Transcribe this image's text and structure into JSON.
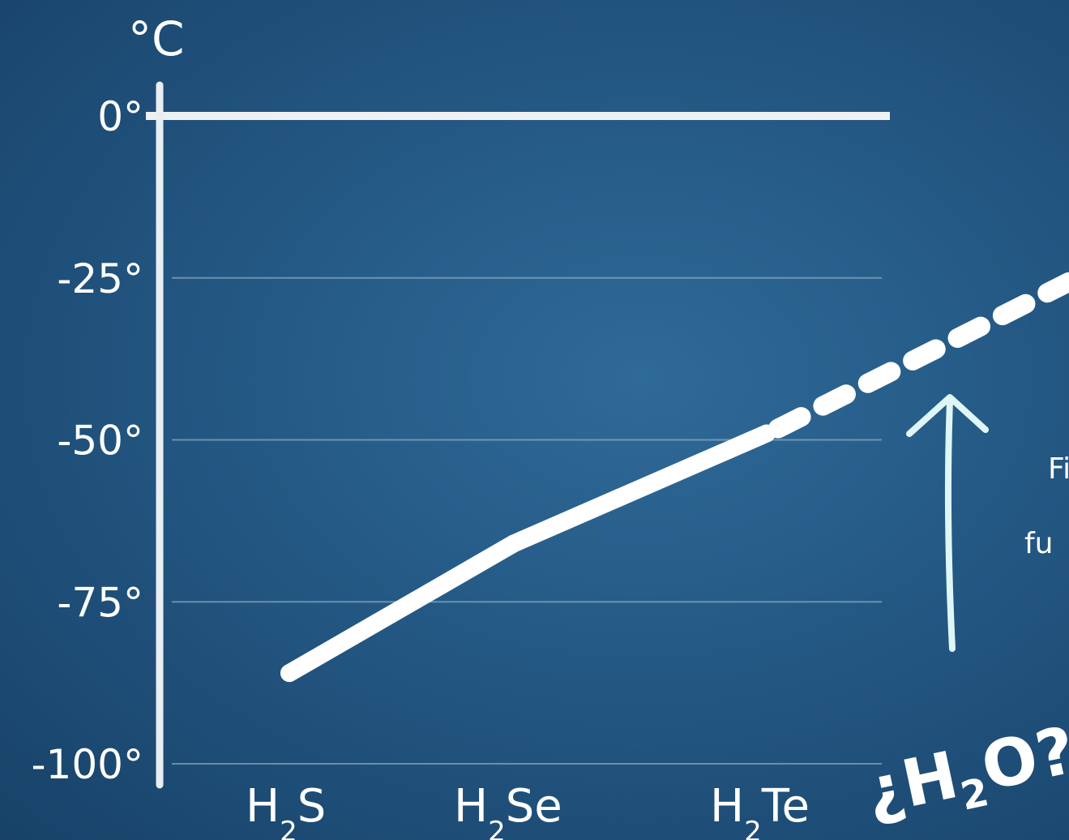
{
  "chart_data": {
    "type": "line",
    "unit_label": "°C",
    "y_ticks": [
      "0°",
      "-25°",
      "-50°",
      "-75°",
      "-100°"
    ],
    "y_tick_values": [
      0,
      -25,
      -50,
      -75,
      -100
    ],
    "ylim": [
      -100,
      0
    ],
    "grid": true,
    "categories": [
      {
        "base": "H",
        "sub": "2",
        "rest": "S"
      },
      {
        "base": "H",
        "sub": "2",
        "rest": "Se"
      },
      {
        "base": "H",
        "sub": "2",
        "rest": "Te"
      }
    ],
    "series": [
      {
        "values": [
          -86,
          -66,
          -49
        ],
        "style": "solid"
      }
    ],
    "extrapolation": {
      "from": -49,
      "to": -25,
      "style": "dashed"
    },
    "annotation": {
      "text_open": "¿",
      "text_base": "H",
      "text_sub": "2",
      "text_rest": "O?",
      "note_fragments": [
        "Fi",
        "fu"
      ]
    },
    "colors": {
      "background": "#255a86",
      "line": "#ffffff",
      "arrow": "#dff6f6",
      "grid": "#9fb8cc"
    }
  }
}
